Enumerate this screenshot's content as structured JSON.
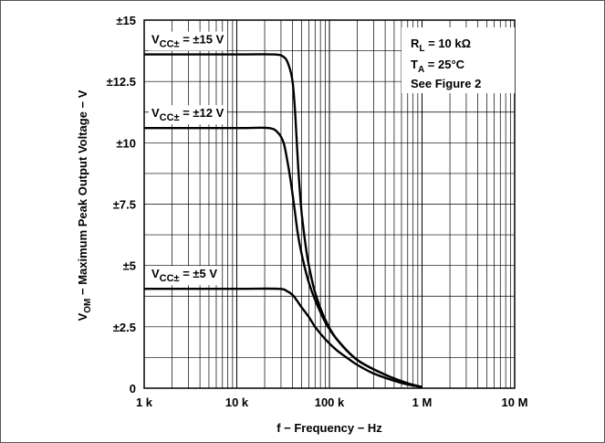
{
  "chart_data": {
    "type": "line",
    "xlabel": "f − Frequency − Hz",
    "ylabel": "V_OM − Maximum Peak Output Voltage − V",
    "x_scale": "log",
    "xlim": [
      1000,
      10000000
    ],
    "ylim": [
      0,
      15
    ],
    "x_ticks": [
      {
        "value": 1000,
        "label": "1 k"
      },
      {
        "value": 10000,
        "label": "10 k"
      },
      {
        "value": 100000,
        "label": "100 k"
      },
      {
        "value": 1000000,
        "label": "1 M"
      },
      {
        "value": 10000000,
        "label": "10 M"
      }
    ],
    "y_ticks": [
      {
        "value": 0,
        "label": "0"
      },
      {
        "value": 2.5,
        "label": "±2.5"
      },
      {
        "value": 5,
        "label": "±5"
      },
      {
        "value": 7.5,
        "label": "±7.5"
      },
      {
        "value": 10,
        "label": "±10"
      },
      {
        "value": 12.5,
        "label": "±12.5"
      },
      {
        "value": 15,
        "label": "±15"
      }
    ],
    "grid": true,
    "conditions": {
      "rl": {
        "main": "R",
        "sub": "L",
        "rest": " = 10 kΩ"
      },
      "ta": {
        "main": "T",
        "sub": "A",
        "rest": " = 25°C"
      },
      "fig": "See Figure 2"
    },
    "series": [
      {
        "name": "±15 V",
        "label": {
          "main": "V",
          "sub": "CC±",
          "rest": " = ±15 V"
        },
        "x": [
          1000,
          10000,
          25000,
          32000,
          36000,
          40000,
          43000,
          46000,
          50000,
          55000,
          60000,
          70000,
          90000,
          120000,
          200000,
          400000,
          700000,
          1000000
        ],
        "y": [
          13.6,
          13.6,
          13.6,
          13.5,
          13.2,
          12.5,
          11.0,
          9.0,
          7.2,
          5.9,
          5.0,
          3.9,
          2.8,
          2.0,
          1.15,
          0.55,
          0.2,
          0.05
        ]
      },
      {
        "name": "±12 V",
        "label": {
          "main": "V",
          "sub": "CC±",
          "rest": " = ±12 V"
        },
        "x": [
          1000,
          10000,
          22000,
          28000,
          32000,
          35000,
          38000,
          42000,
          46000,
          52000,
          60000,
          70000,
          90000,
          120000,
          200000,
          400000,
          700000,
          1000000
        ],
        "y": [
          10.6,
          10.6,
          10.6,
          10.4,
          10.0,
          9.3,
          8.5,
          7.3,
          6.2,
          5.2,
          4.3,
          3.6,
          2.7,
          2.0,
          1.15,
          0.55,
          0.2,
          0.05
        ]
      },
      {
        "name": "±5 V",
        "label": {
          "main": "V",
          "sub": "CC±",
          "rest": " = ±5 V"
        },
        "x": [
          1000,
          10000,
          28000,
          35000,
          40000,
          45000,
          50000,
          60000,
          70000,
          90000,
          120000,
          160000,
          200000,
          300000,
          500000,
          700000,
          1000000
        ],
        "y": [
          4.05,
          4.05,
          4.05,
          3.95,
          3.8,
          3.55,
          3.3,
          2.9,
          2.5,
          2.0,
          1.55,
          1.2,
          0.95,
          0.6,
          0.3,
          0.15,
          0.05
        ]
      }
    ]
  }
}
